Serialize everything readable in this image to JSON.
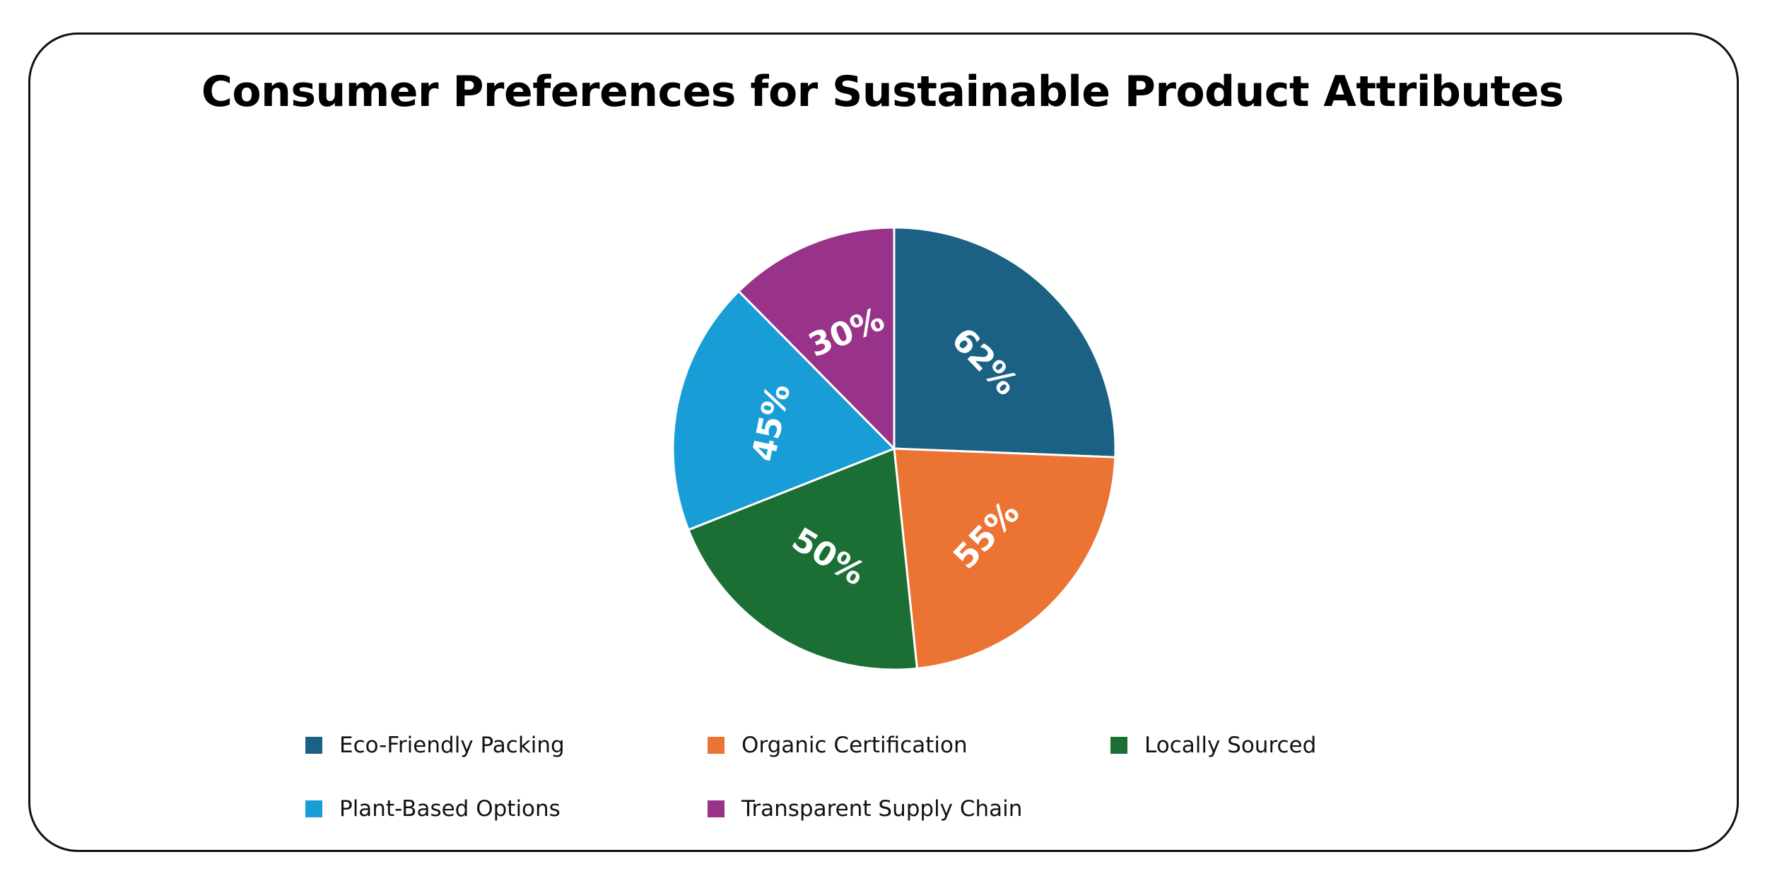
{
  "chart_data": {
    "type": "pie",
    "title": "Consumer Preferences for Sustainable Product Attributes",
    "slices": [
      {
        "label": "Eco-Friendly Packing",
        "value": 62,
        "display": "62%",
        "color": "#1a6183"
      },
      {
        "label": "Organic Certification",
        "value": 55,
        "display": "55%",
        "color": "#eb7334"
      },
      {
        "label": "Locally Sourced",
        "value": 50,
        "display": "50%",
        "color": "#1b6f35"
      },
      {
        "label": "Plant-Based Options",
        "value": 45,
        "display": "45%",
        "color": "#199dd6"
      },
      {
        "label": "Transparent Supply Chain",
        "value": 30,
        "display": "30%",
        "color": "#993389"
      }
    ],
    "legend_position": "bottom"
  }
}
